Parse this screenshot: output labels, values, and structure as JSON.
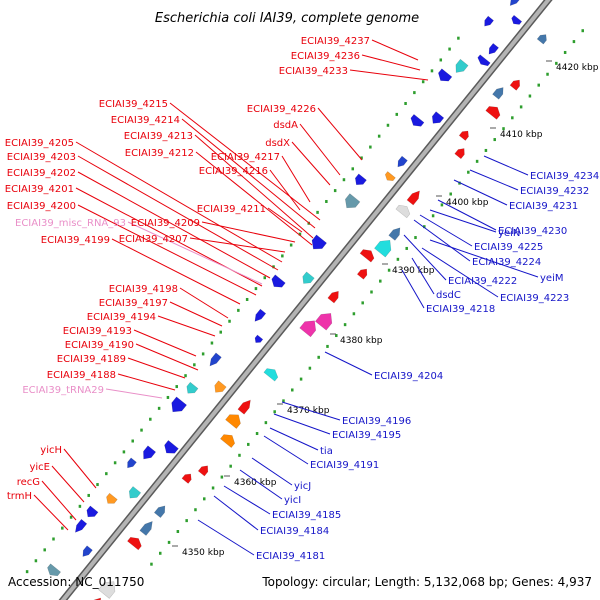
{
  "title": "Escherichia coli IAI39, complete genome",
  "footer": {
    "accession": "Accession: NC_011750",
    "summary": "Topology: circular; Length: 5,132,068 bp; Genes: 4,937"
  },
  "colors": {
    "forward_label": "#e8000b",
    "reverse_label": "#1515c8",
    "rna_label": "#e98fc8",
    "backbone": "#8a8a8a"
  },
  "ticks": [
    {
      "label": "4350 kbp"
    },
    {
      "label": "4360 kbp"
    },
    {
      "label": "4370 kbp"
    },
    {
      "label": "4380 kbp"
    },
    {
      "label": "4390 kbp"
    },
    {
      "label": "4400 kbp"
    },
    {
      "label": "4410 kbp"
    },
    {
      "label": "4420 kbp"
    }
  ],
  "labels_forward": [
    {
      "text": "ECIAI39_4237"
    },
    {
      "text": "ECIAI39_4236"
    },
    {
      "text": "ECIAI39_4233"
    },
    {
      "text": "ECIAI39_4215"
    },
    {
      "text": "ECIAI39_4226"
    },
    {
      "text": "ECIAI39_4214"
    },
    {
      "text": "dsdA"
    },
    {
      "text": "ECIAI39_4213"
    },
    {
      "text": "dsdX"
    },
    {
      "text": "ECIAI39_4205"
    },
    {
      "text": "ECIAI39_4212"
    },
    {
      "text": "ECIAI39_4217"
    },
    {
      "text": "ECIAI39_4203"
    },
    {
      "text": "ECIAI39_4216"
    },
    {
      "text": "ECIAI39_4202"
    },
    {
      "text": "ECIAI39_4201"
    },
    {
      "text": "ECIAI39_4200"
    },
    {
      "text": "ECIAI39_4211"
    },
    {
      "text": "ECIAI39_4209"
    },
    {
      "text": "ECIAI39_4207"
    },
    {
      "text": "ECIAI39_4199"
    },
    {
      "text": "ECIAI39_4198"
    },
    {
      "text": "ECIAI39_4197"
    },
    {
      "text": "ECIAI39_4194"
    },
    {
      "text": "ECIAI39_4193"
    },
    {
      "text": "ECIAI39_4190"
    },
    {
      "text": "ECIAI39_4189"
    },
    {
      "text": "ECIAI39_4188"
    },
    {
      "text": "yicH"
    },
    {
      "text": "yicE"
    },
    {
      "text": "recG"
    },
    {
      "text": "trmH"
    }
  ],
  "labels_rna": [
    {
      "text": "ECIAI39_misc_RNA_93"
    },
    {
      "text": "ECIAI39_tRNA29"
    }
  ],
  "labels_reverse": [
    {
      "text": "ECIAI39_4234"
    },
    {
      "text": "ECIAI39_4232"
    },
    {
      "text": "ECIAI39_4231"
    },
    {
      "text": "ECIAI39_4230"
    },
    {
      "text": "yeiN"
    },
    {
      "text": "ECIAI39_4225"
    },
    {
      "text": "ECIAI39_4224"
    },
    {
      "text": "yeiM"
    },
    {
      "text": "ECIAI39_4222"
    },
    {
      "text": "ECIAI39_4223"
    },
    {
      "text": "dsdC"
    },
    {
      "text": "ECIAI39_4218"
    },
    {
      "text": "ECIAI39_4204"
    },
    {
      "text": "ECIAI39_4196"
    },
    {
      "text": "ECIAI39_4195"
    },
    {
      "text": "tia"
    },
    {
      "text": "ECIAI39_4191"
    },
    {
      "text": "yicJ"
    },
    {
      "text": "yicI"
    },
    {
      "text": "ECIAI39_4185"
    },
    {
      "text": "ECIAI39_4184"
    },
    {
      "text": "ECIAI39_4181"
    }
  ]
}
